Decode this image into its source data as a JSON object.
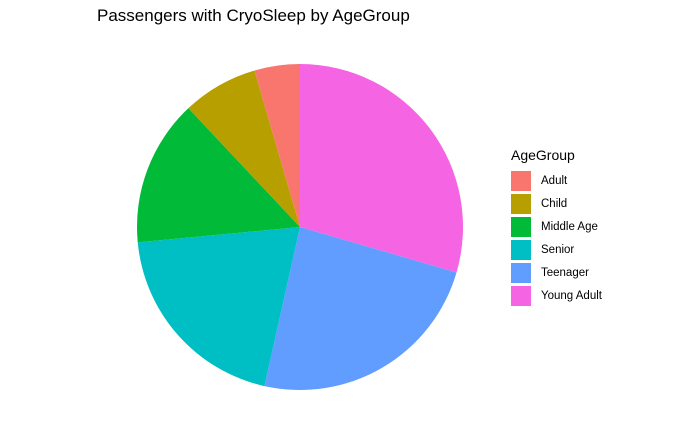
{
  "chart_data": {
    "type": "pie",
    "title": "Passengers with CryoSleep by AgeGroup",
    "legend_title": "AgeGroup",
    "legend_position": "right",
    "slices": [
      {
        "label": "Young Adult",
        "value": 29.5,
        "color": "#F564E3"
      },
      {
        "label": "Teenager",
        "value": 24.0,
        "color": "#619CFF"
      },
      {
        "label": "Senior",
        "value": 20.0,
        "color": "#00BFC4"
      },
      {
        "label": "Middle Age",
        "value": 14.5,
        "color": "#00BA38"
      },
      {
        "label": "Child",
        "value": 7.5,
        "color": "#B79F00"
      },
      {
        "label": "Adult",
        "value": 4.5,
        "color": "#F8766D"
      }
    ],
    "legend_order": [
      {
        "label": "Adult",
        "color": "#F8766D"
      },
      {
        "label": "Child",
        "color": "#B79F00"
      },
      {
        "label": "Middle Age",
        "color": "#00BA38"
      },
      {
        "label": "Senior",
        "color": "#00BFC4"
      },
      {
        "label": "Teenager",
        "color": "#619CFF"
      },
      {
        "label": "Young Adult",
        "color": "#F564E3"
      }
    ]
  }
}
